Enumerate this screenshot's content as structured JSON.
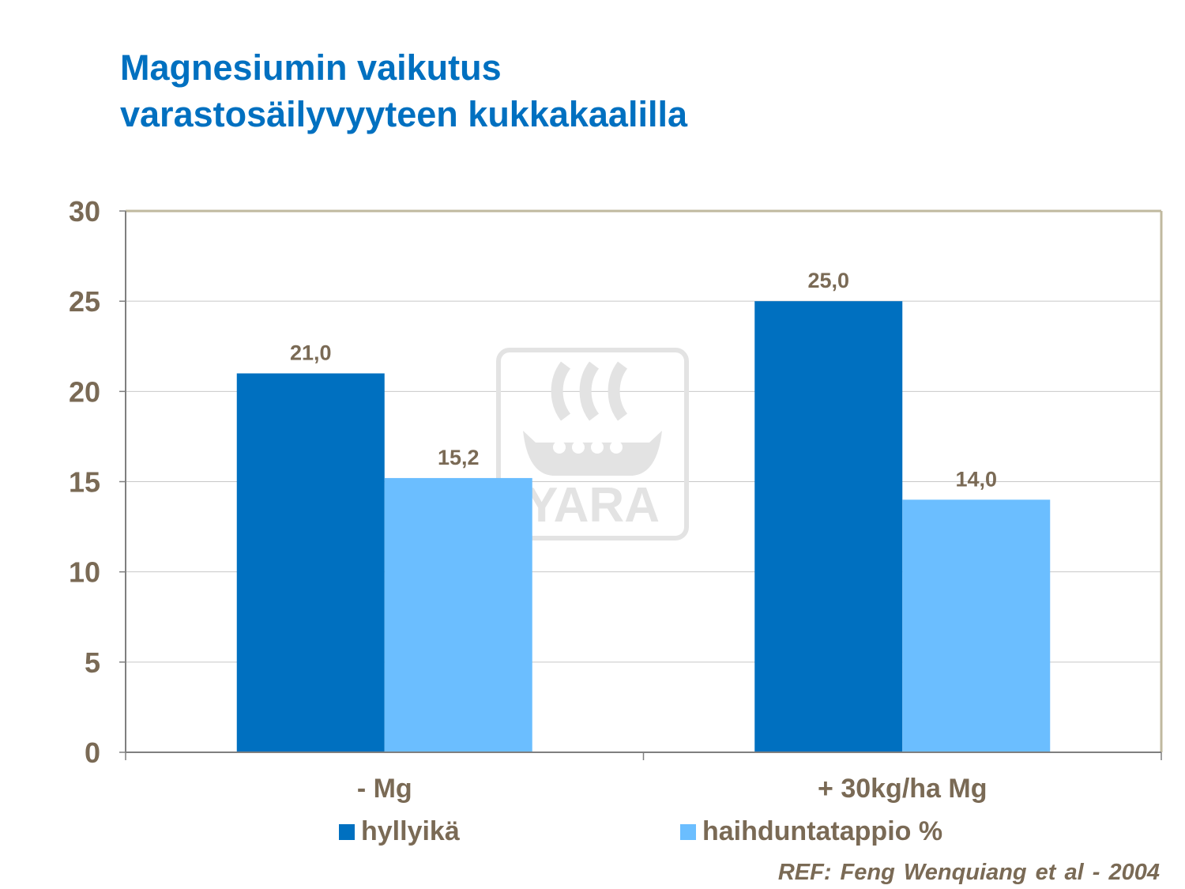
{
  "title_lines": [
    "Magnesiumin vaikutus",
    "varastosäilyvyyteen kukkakaalilla"
  ],
  "watermark_text": "YARA",
  "reference": "REF: Feng Wenquiang et al - 2004",
  "colors": {
    "title": "#0070c0",
    "series_dark": "#0070c0",
    "series_light": "#6bbeff",
    "text": "#7a6a55",
    "axis": "#7f7f7f",
    "plot_border": "#c0b99f",
    "grid": "#c8c8c8"
  },
  "chart_data": {
    "type": "bar",
    "categories": [
      "- Mg",
      "+ 30kg/ha Mg"
    ],
    "series": [
      {
        "name": "hyllyikä",
        "values": [
          21.0,
          25.0
        ],
        "labels": [
          "21,0",
          "25,0"
        ],
        "color": "#0070c0"
      },
      {
        "name": "haihduntatappio %",
        "values": [
          15.2,
          14.0
        ],
        "labels": [
          "15,2",
          "14,0"
        ],
        "color": "#6bbeff"
      }
    ],
    "ylim": [
      0,
      30
    ],
    "yticks": [
      0,
      5,
      10,
      15,
      20,
      25,
      30
    ],
    "ytick_labels": [
      "0",
      "5",
      "10",
      "15",
      "20",
      "25",
      "30"
    ],
    "grid": true,
    "legend_position": "bottom"
  }
}
